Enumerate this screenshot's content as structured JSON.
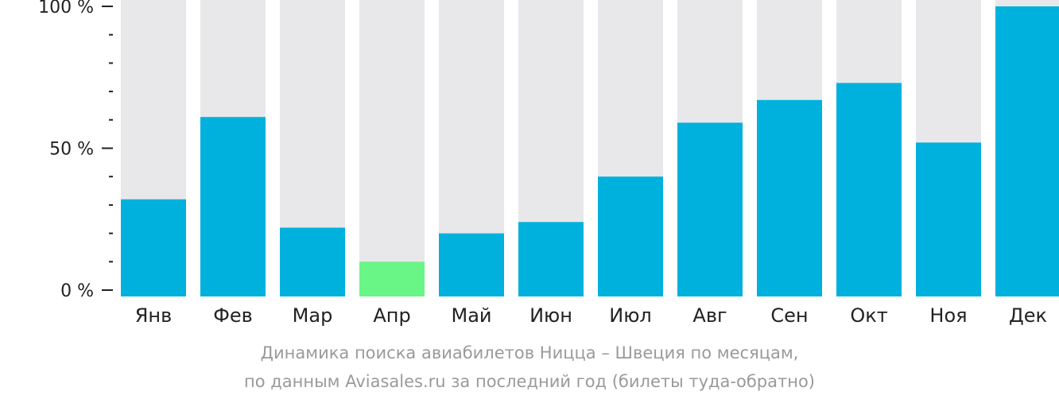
{
  "colors": {
    "bar": "#00b1dd",
    "highlight": "#6af587",
    "background_bar": "#e8e8ea",
    "axis": "#222222",
    "caption": "#9a9a9a"
  },
  "caption": {
    "line1": "Динамика поиска авиабилетов Ницца – Швеция по месяцам,",
    "line2": "по данным Aviasales.ru за последний год (билеты туда-обратно)"
  },
  "chart_data": {
    "type": "bar",
    "categories": [
      "Янв",
      "Фев",
      "Мар",
      "Апр",
      "Май",
      "Июн",
      "Июл",
      "Авг",
      "Сен",
      "Окт",
      "Ноя",
      "Дек"
    ],
    "values": [
      32,
      61,
      22,
      10,
      20,
      24,
      40,
      59,
      67,
      73,
      52,
      100
    ],
    "highlight_index": 3,
    "ylim": [
      0,
      100
    ],
    "y_ticks": [
      {
        "value": 0,
        "label": "0 %"
      },
      {
        "value": 50,
        "label": "50 %"
      },
      {
        "value": 100,
        "label": "100 %"
      }
    ],
    "minor_tick_step": 10,
    "grid": false,
    "legend": "none"
  }
}
